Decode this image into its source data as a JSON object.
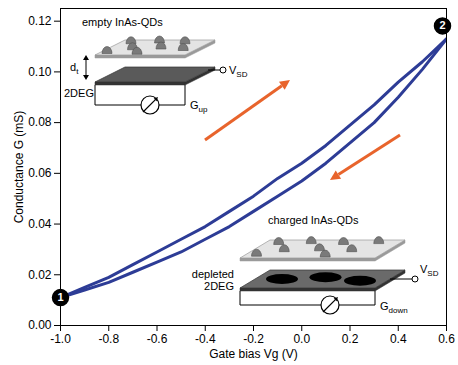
{
  "chart_data": {
    "type": "line",
    "x_label": "Gate bias Vg (V)",
    "y_label": "Conductance G (mS)",
    "x": [
      -1.0,
      -0.9,
      -0.8,
      -0.7,
      -0.6,
      -0.5,
      -0.4,
      -0.3,
      -0.2,
      -0.1,
      0.0,
      0.1,
      0.2,
      0.3,
      0.4,
      0.5,
      0.6
    ],
    "series": [
      {
        "color": "#2d3c96",
        "values": [
          0.011,
          0.015,
          0.019,
          0.024,
          0.029,
          0.034,
          0.039,
          0.045,
          0.051,
          0.058,
          0.064,
          0.071,
          0.079,
          0.087,
          0.096,
          0.104,
          0.113
        ]
      },
      {
        "color": "#2d3c96",
        "values": [
          0.011,
          0.014,
          0.017,
          0.021,
          0.025,
          0.029,
          0.034,
          0.039,
          0.045,
          0.051,
          0.057,
          0.064,
          0.072,
          0.08,
          0.09,
          0.101,
          0.113
        ]
      }
    ],
    "xlim": [
      -1.0,
      0.6
    ],
    "ylim": [
      0,
      0.125
    ],
    "xticks": [
      {
        "value": -1.0,
        "label": "-1.0"
      },
      -0.8,
      -0.6,
      -0.4,
      -0.2,
      {
        "value": 0,
        "label": "0.0"
      },
      0.2,
      0.4,
      0.6
    ],
    "yticks": [
      {
        "value": 0,
        "label": "0.00"
      },
      0.02,
      0.04,
      0.06,
      0.08,
      {
        "value": 0.1,
        "label": "0.10"
      },
      0.12
    ],
    "grid": false,
    "annotations": {
      "markers": [
        "1",
        "2"
      ],
      "inset_empty": {
        "title": "empty InAs-QDs",
        "layer": "2DEG",
        "thickness": [
          "d",
          "t"
        ],
        "bias": [
          "V",
          "SD"
        ],
        "meter": [
          "G",
          "up"
        ]
      },
      "inset_charged": {
        "title": "charged InAs-QDs",
        "layer": "depleted 2DEG",
        "bias": [
          "V",
          "SD"
        ],
        "meter": [
          "G",
          "down"
        ]
      }
    }
  }
}
